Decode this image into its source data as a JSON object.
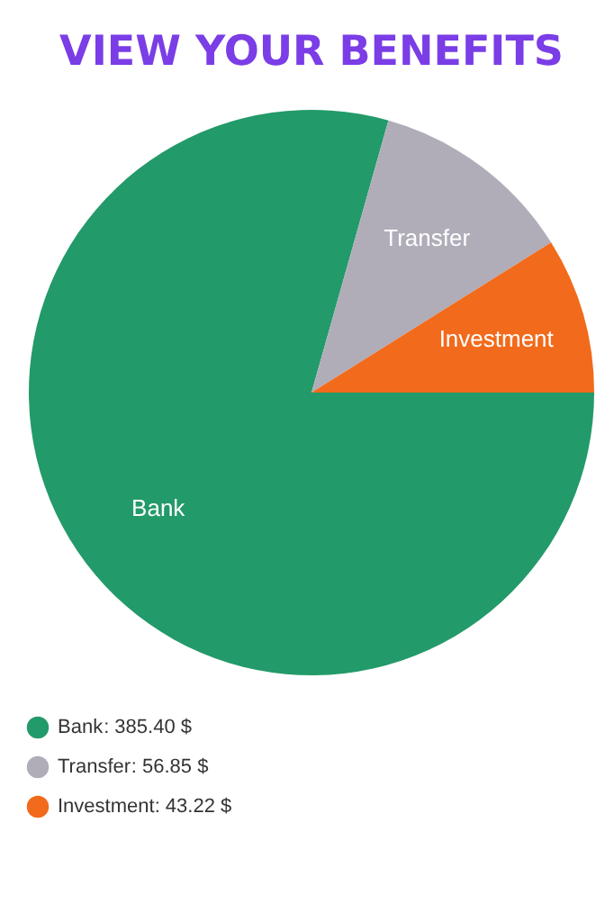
{
  "chart_data": {
    "type": "pie",
    "title": "VIEW YOUR BENEFITS",
    "categories": [
      "Bank",
      "Transfer",
      "Investment"
    ],
    "values": [
      385.4,
      56.85,
      43.22
    ],
    "colors": [
      "#239a69",
      "#b0adb9",
      "#f26a1b"
    ],
    "value_labels": [
      ": 385.40 $",
      ": 56.85 $",
      ": 43.22 $"
    ],
    "legend": "bottom left"
  }
}
